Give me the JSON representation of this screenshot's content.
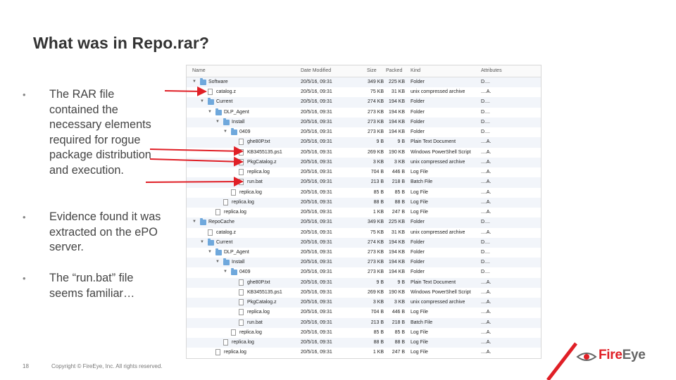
{
  "slide": {
    "title": "What was in Repo.rar?",
    "bullet_marker": "•",
    "bullets": [
      "The RAR file contained the necessary elements required for rogue package distribution and execution.",
      "Evidence found it was extracted on the ePO server.",
      "The “run.bat” file seems familiar…"
    ],
    "page_number": "18",
    "copyright": "Copyright © FireEye, Inc. All rights reserved.",
    "logo": {
      "fire": "Fire",
      "eye": "Eye"
    },
    "accent_color": "#e01f26"
  },
  "finder": {
    "columns": {
      "name": "Name",
      "date": "Date Modified",
      "size": "Size",
      "packed": "Packed",
      "kind": "Kind",
      "attributes": "Attributes"
    },
    "rows": [
      {
        "indent": 0,
        "tri": "▼",
        "icon": "folder",
        "name": "Software",
        "date": "20/5/16, 09:31",
        "size": "349 KB",
        "packed": "225 KB",
        "kind": "Folder",
        "attr": "D...."
      },
      {
        "indent": 1,
        "tri": "",
        "icon": "file",
        "name": "catalog.z",
        "date": "20/5/16, 09:31",
        "size": "75 KB",
        "packed": "31 KB",
        "kind": "unix compressed archive",
        "attr": "....A."
      },
      {
        "indent": 1,
        "tri": "▼",
        "icon": "folder",
        "name": "Current",
        "date": "20/5/16, 09:31",
        "size": "274 KB",
        "packed": "194 KB",
        "kind": "Folder",
        "attr": "D...."
      },
      {
        "indent": 2,
        "tri": "▼",
        "icon": "folder",
        "name": "DLP_Agent",
        "date": "20/5/16, 09:31",
        "size": "273 KB",
        "packed": "194 KB",
        "kind": "Folder",
        "attr": "D...."
      },
      {
        "indent": 3,
        "tri": "▼",
        "icon": "folder",
        "name": "Install",
        "date": "20/5/16, 09:31",
        "size": "273 KB",
        "packed": "194 KB",
        "kind": "Folder",
        "attr": "D...."
      },
      {
        "indent": 4,
        "tri": "▼",
        "icon": "folder",
        "name": "0409",
        "date": "20/5/16, 09:31",
        "size": "273 KB",
        "packed": "194 KB",
        "kind": "Folder",
        "attr": "D...."
      },
      {
        "indent": 5,
        "tri": "",
        "icon": "file",
        "name": "ghe80P.txt",
        "date": "20/5/16, 09:31",
        "size": "9 B",
        "packed": "9 B",
        "kind": "Plain Text Document",
        "attr": "....A."
      },
      {
        "indent": 5,
        "tri": "",
        "icon": "file",
        "name": "KB3455135.ps1",
        "date": "20/5/16, 09:31",
        "size": "269 KB",
        "packed": "190 KB",
        "kind": "Windows PowerShell Script",
        "attr": "....A."
      },
      {
        "indent": 5,
        "tri": "",
        "icon": "file",
        "name": "PkgCatalog.z",
        "date": "20/5/16, 09:31",
        "size": "3 KB",
        "packed": "3 KB",
        "kind": "unix compressed archive",
        "attr": "....A."
      },
      {
        "indent": 5,
        "tri": "",
        "icon": "file",
        "name": "replica.log",
        "date": "20/5/16, 09:31",
        "size": "704 B",
        "packed": "446 B",
        "kind": "Log File",
        "attr": "....A."
      },
      {
        "indent": 5,
        "tri": "",
        "icon": "file",
        "name": "run.bat",
        "date": "20/5/16, 09:31",
        "size": "213 B",
        "packed": "218 B",
        "kind": "Batch File",
        "attr": "....A."
      },
      {
        "indent": 4,
        "tri": "",
        "icon": "file",
        "name": "replica.log",
        "date": "20/5/16, 09:31",
        "size": "85 B",
        "packed": "85 B",
        "kind": "Log File",
        "attr": "....A."
      },
      {
        "indent": 3,
        "tri": "",
        "icon": "file",
        "name": "replica.log",
        "date": "20/5/16, 09:31",
        "size": "88 B",
        "packed": "88 B",
        "kind": "Log File",
        "attr": "....A."
      },
      {
        "indent": 2,
        "tri": "",
        "icon": "file",
        "name": "replica.log",
        "date": "20/5/16, 09:31",
        "size": "1 KB",
        "packed": "247 B",
        "kind": "Log File",
        "attr": "....A."
      },
      {
        "indent": 0,
        "tri": "▼",
        "icon": "folder",
        "name": "RepoCache",
        "date": "20/5/16, 09:31",
        "size": "349 KB",
        "packed": "225 KB",
        "kind": "Folder",
        "attr": "D...."
      },
      {
        "indent": 1,
        "tri": "",
        "icon": "file",
        "name": "catalog.z",
        "date": "20/5/16, 09:31",
        "size": "75 KB",
        "packed": "31 KB",
        "kind": "unix compressed archive",
        "attr": "....A."
      },
      {
        "indent": 1,
        "tri": "▼",
        "icon": "folder",
        "name": "Current",
        "date": "20/5/16, 09:31",
        "size": "274 KB",
        "packed": "194 KB",
        "kind": "Folder",
        "attr": "D...."
      },
      {
        "indent": 2,
        "tri": "▼",
        "icon": "folder",
        "name": "DLP_Agent",
        "date": "20/5/16, 09:31",
        "size": "273 KB",
        "packed": "194 KB",
        "kind": "Folder",
        "attr": "D...."
      },
      {
        "indent": 3,
        "tri": "▼",
        "icon": "folder",
        "name": "Install",
        "date": "20/5/16, 09:31",
        "size": "273 KB",
        "packed": "194 KB",
        "kind": "Folder",
        "attr": "D...."
      },
      {
        "indent": 4,
        "tri": "▼",
        "icon": "folder",
        "name": "0409",
        "date": "20/5/16, 09:31",
        "size": "273 KB",
        "packed": "194 KB",
        "kind": "Folder",
        "attr": "D...."
      },
      {
        "indent": 5,
        "tri": "",
        "icon": "file",
        "name": "ghe80P.txt",
        "date": "20/5/16, 09:31",
        "size": "9 B",
        "packed": "9 B",
        "kind": "Plain Text Document",
        "attr": "....A."
      },
      {
        "indent": 5,
        "tri": "",
        "icon": "file",
        "name": "KB3455135.ps1",
        "date": "20/5/16, 09:31",
        "size": "269 KB",
        "packed": "190 KB",
        "kind": "Windows PowerShell Script",
        "attr": "....A."
      },
      {
        "indent": 5,
        "tri": "",
        "icon": "file",
        "name": "PkgCatalog.z",
        "date": "20/5/16, 09:31",
        "size": "3 KB",
        "packed": "3 KB",
        "kind": "unix compressed archive",
        "attr": "....A."
      },
      {
        "indent": 5,
        "tri": "",
        "icon": "file",
        "name": "replica.log",
        "date": "20/5/16, 09:31",
        "size": "704 B",
        "packed": "446 B",
        "kind": "Log File",
        "attr": "....A."
      },
      {
        "indent": 5,
        "tri": "",
        "icon": "file",
        "name": "run.bat",
        "date": "20/5/16, 09:31",
        "size": "213 B",
        "packed": "218 B",
        "kind": "Batch File",
        "attr": "....A."
      },
      {
        "indent": 4,
        "tri": "",
        "icon": "file",
        "name": "replica.log",
        "date": "20/5/16, 09:31",
        "size": "85 B",
        "packed": "85 B",
        "kind": "Log File",
        "attr": "....A."
      },
      {
        "indent": 3,
        "tri": "",
        "icon": "file",
        "name": "replica.log",
        "date": "20/5/16, 09:31",
        "size": "88 B",
        "packed": "88 B",
        "kind": "Log File",
        "attr": "....A."
      },
      {
        "indent": 2,
        "tri": "",
        "icon": "file",
        "name": "replica.log",
        "date": "20/5/16, 09:31",
        "size": "1 KB",
        "packed": "247 B",
        "kind": "Log File",
        "attr": "....A."
      }
    ]
  }
}
